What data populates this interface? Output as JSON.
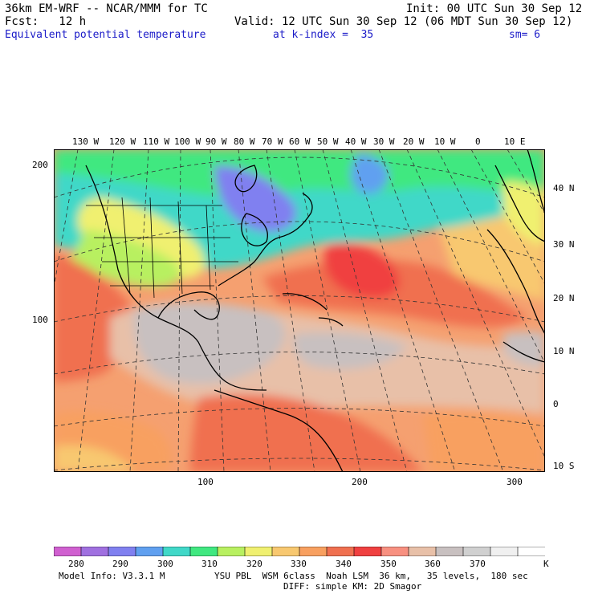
{
  "header": {
    "line1_left": "36km EM-WRF -- NCAR/MMM for TC",
    "line1_right": "Init: 00 UTC Sun 30 Sep 12",
    "line2_left": "Fcst:   12 h",
    "line2_right": "Valid: 12 UTC Sun 30 Sep 12 (06 MDT Sun 30 Sep 12)",
    "line3_field": "Equivalent potential temperature",
    "line3_level": "at k-index =  35",
    "line3_sm": "sm= 6"
  },
  "top_lon_labels": [
    "130 W",
    "120 W",
    "110 W",
    "100 W",
    "90 W",
    "80 W",
    "70 W",
    "60 W",
    "50 W",
    "40 W",
    "30 W",
    "20 W",
    "10 W",
    "0",
    "10 E"
  ],
  "right_lat_labels": [
    "40 N",
    "30 N",
    "20 N",
    "10 N",
    "0",
    "10 S"
  ],
  "left_grid_labels": [
    "200",
    "100"
  ],
  "bottom_grid_labels": [
    "100",
    "200",
    "300"
  ],
  "colorbar": {
    "labels": [
      "280",
      "290",
      "300",
      "310",
      "320",
      "330",
      "340",
      "350",
      "360",
      "370"
    ],
    "unit": "K",
    "colors": [
      "#d060d0",
      "#a070e0",
      "#8080f0",
      "#60a0f0",
      "#40d8c8",
      "#40e880",
      "#b8f060",
      "#f0f070",
      "#f8c870",
      "#f8a060",
      "#f07050",
      "#f04040",
      "#f89080",
      "#e8c0a8",
      "#c8c0c0",
      "#d0d0d0",
      "#f0f0f0",
      "#ffffff"
    ]
  },
  "footer": {
    "model_info": "Model Info: V3.3.1 M",
    "physics": "YSU PBL  WSM 6class  Noah LSM  36 km,   35 levels,  180 sec",
    "diff": "DIFF: simple KM: 2D Smagor"
  }
}
